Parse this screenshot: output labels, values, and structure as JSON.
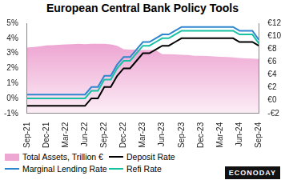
{
  "chart_data": {
    "type": "line",
    "title": "European Central Bank Policy Tools",
    "annotation": "ECONODAY",
    "categories": [
      "Sep-21",
      null,
      null,
      "Dec-21",
      null,
      null,
      "Mar-22",
      null,
      null,
      "Jun-22",
      null,
      null,
      "Sep-22",
      null,
      null,
      "Dec-22",
      null,
      null,
      "Mar-23",
      null,
      null,
      "Jun-23",
      null,
      null,
      "Sep-23",
      null,
      null,
      "Dec-23",
      null,
      null,
      "Mar-24",
      null,
      null,
      "Jun-24",
      null,
      null,
      "Sep-24"
    ],
    "series": [
      {
        "name": "Total Assets, Trillion €",
        "type": "area",
        "axis": "y2",
        "color": "#e26bb5",
        "values": [
          8.2,
          8.3,
          8.4,
          8.55,
          8.6,
          8.65,
          8.7,
          8.75,
          8.8,
          8.75,
          8.8,
          8.8,
          8.8,
          8.7,
          8.5,
          7.95,
          7.9,
          7.9,
          7.85,
          7.85,
          7.8,
          7.2,
          7.2,
          7.15,
          7.1,
          7.05,
          6.95,
          6.95,
          6.9,
          6.85,
          6.8,
          6.75,
          6.7,
          6.6,
          6.55,
          6.5,
          6.45
        ]
      },
      {
        "name": "Deposit Rate",
        "type": "line",
        "color": "#000000",
        "values": [
          -0.5,
          -0.5,
          -0.5,
          -0.5,
          -0.5,
          -0.5,
          -0.5,
          -0.5,
          -0.5,
          -0.5,
          0,
          0,
          0.75,
          0.75,
          1.5,
          2,
          2,
          2.5,
          3,
          3,
          3.25,
          3.5,
          3.5,
          3.75,
          4,
          4,
          4,
          4,
          4,
          4,
          4,
          4,
          4,
          3.75,
          3.75,
          3.75,
          3.5
        ]
      },
      {
        "name": "Marginal Lending Rate",
        "type": "line",
        "color": "#2e86d1",
        "values": [
          0.25,
          0.25,
          0.25,
          0.25,
          0.25,
          0.25,
          0.25,
          0.25,
          0.25,
          0.25,
          0.75,
          0.75,
          1.5,
          1.5,
          2.25,
          2.75,
          2.75,
          3.25,
          3.75,
          3.75,
          4,
          4.25,
          4.25,
          4.5,
          4.75,
          4.75,
          4.75,
          4.75,
          4.75,
          4.75,
          4.75,
          4.75,
          4.75,
          4.5,
          4.5,
          4.5,
          3.9
        ]
      },
      {
        "name": "Refi Rate",
        "type": "line",
        "color": "#17c2a4",
        "values": [
          0,
          0,
          0,
          0,
          0,
          0,
          0,
          0,
          0,
          0,
          0.5,
          0.5,
          1.25,
          1.25,
          2,
          2.5,
          2.5,
          3,
          3.5,
          3.5,
          3.75,
          4,
          4,
          4.25,
          4.5,
          4.5,
          4.5,
          4.5,
          4.5,
          4.5,
          4.5,
          4.5,
          4.5,
          4.25,
          4.25,
          4.25,
          3.65
        ]
      }
    ],
    "ylim": [
      -1,
      5
    ],
    "yticks": [
      {
        "value": -1,
        "label": "-1%"
      },
      {
        "value": 0,
        "label": "0%"
      },
      {
        "value": 1,
        "label": "1%"
      },
      {
        "value": 2,
        "label": "2%"
      },
      {
        "value": 3,
        "label": "3%"
      },
      {
        "value": 4,
        "label": "4%"
      },
      {
        "value": 5,
        "label": "5%"
      }
    ],
    "y2lim": [
      -2,
      12
    ],
    "y2ticks": [
      {
        "value": -2,
        "label": "-€2"
      },
      {
        "value": 0,
        "label": "€0"
      },
      {
        "value": 2,
        "label": "€2"
      },
      {
        "value": 4,
        "label": "€4"
      },
      {
        "value": 6,
        "label": "€6"
      },
      {
        "value": 8,
        "label": "€8"
      },
      {
        "value": 10,
        "label": "€10"
      },
      {
        "value": 12,
        "label": "€12"
      }
    ],
    "grid": false,
    "legend": "bottom"
  }
}
